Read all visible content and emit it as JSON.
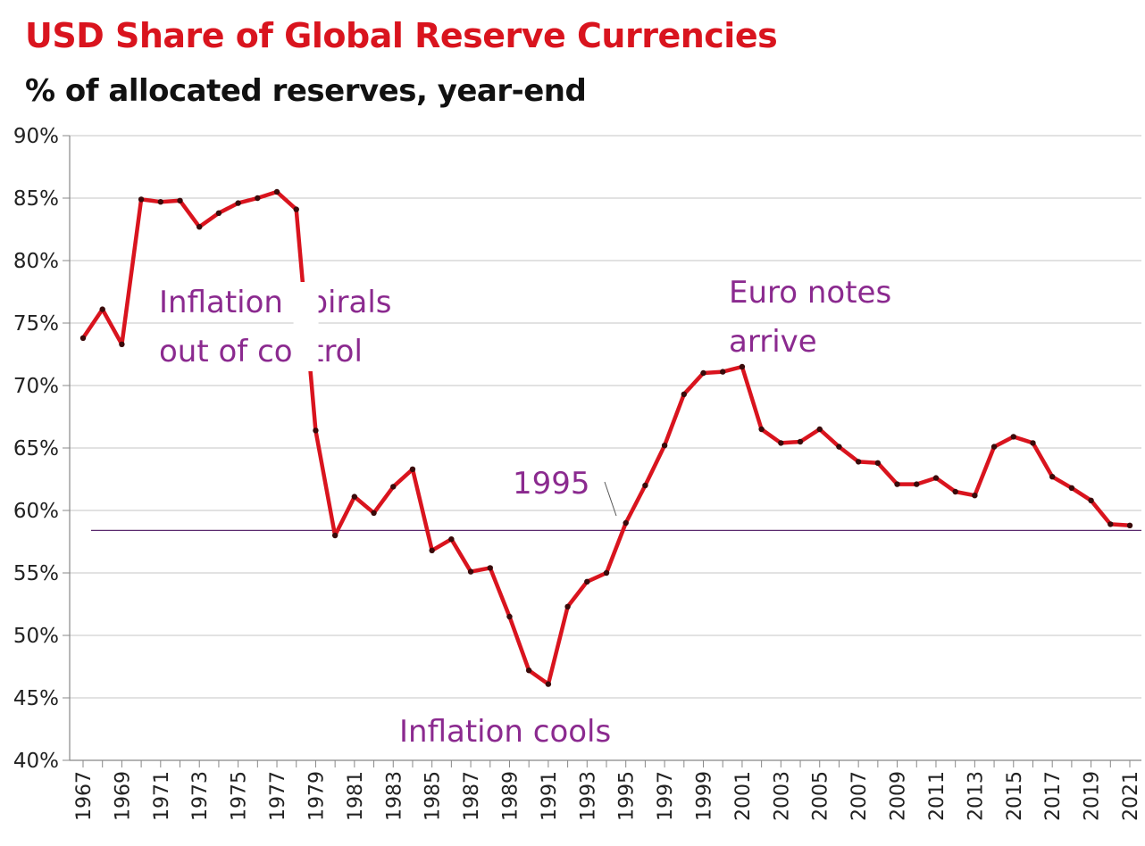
{
  "chart_data": {
    "type": "line",
    "title": "USD Share of Global  Reserve Currencies",
    "subtitle": "% of allocated reserves, year-end",
    "xlabel": "",
    "ylabel": "",
    "ylim": [
      40,
      90
    ],
    "xlim": [
      1967,
      2021
    ],
    "grid": true,
    "y_ticks": [
      "90%",
      "85%",
      "80%",
      "75%",
      "70%",
      "65%",
      "60%",
      "55%",
      "50%",
      "45%",
      "40%"
    ],
    "y_tick_values": [
      90,
      85,
      80,
      75,
      70,
      65,
      60,
      55,
      50,
      45,
      40
    ],
    "x_ticks": [
      "1967",
      "1969",
      "1971",
      "1973",
      "1975",
      "1977",
      "1979",
      "1981",
      "1983",
      "1985",
      "1987",
      "1989",
      "1991",
      "1993",
      "1995",
      "1997",
      "1999",
      "2001",
      "2003",
      "2005",
      "2007",
      "2009",
      "2011",
      "2013",
      "2015",
      "2017",
      "2019",
      "2021"
    ],
    "x_tick_values": [
      1967,
      1969,
      1971,
      1973,
      1975,
      1977,
      1979,
      1981,
      1983,
      1985,
      1987,
      1989,
      1991,
      1993,
      1995,
      1997,
      1999,
      2001,
      2003,
      2005,
      2007,
      2009,
      2011,
      2013,
      2015,
      2017,
      2019,
      2021
    ],
    "series": [
      {
        "color": "#d9141e",
        "x": [
          1967,
          1968,
          1969,
          1970,
          1971,
          1972,
          1973,
          1974,
          1975,
          1976,
          1977,
          1978,
          1979,
          1980,
          1981,
          1982,
          1983,
          1984,
          1985,
          1986,
          1987,
          1988,
          1989,
          1990,
          1991,
          1992,
          1993,
          1994,
          1995,
          1996,
          1997,
          1998,
          1999,
          2000,
          2001,
          2002,
          2003,
          2004,
          2005,
          2006,
          2007,
          2008,
          2009,
          2010,
          2011,
          2012,
          2013,
          2014,
          2015,
          2016,
          2017,
          2018,
          2019,
          2020,
          2021
        ],
        "y": [
          73.8,
          76.1,
          73.3,
          84.9,
          84.7,
          84.8,
          82.7,
          83.8,
          84.6,
          85.0,
          85.5,
          84.1,
          66.4,
          58.0,
          61.1,
          59.8,
          61.9,
          63.3,
          56.8,
          57.7,
          55.1,
          55.4,
          51.5,
          47.2,
          46.1,
          52.3,
          54.3,
          55.0,
          59.0,
          62.0,
          65.2,
          69.3,
          71.0,
          71.1,
          71.5,
          66.5,
          65.4,
          65.5,
          66.5,
          65.1,
          63.9,
          63.8,
          62.1,
          62.1,
          62.6,
          61.5,
          61.2,
          65.1,
          65.9,
          65.4,
          62.7,
          61.8,
          60.8,
          58.9,
          58.8
        ]
      }
    ],
    "reference_line": {
      "y": 58.4,
      "color": "#5a2a6e"
    },
    "annotations": [
      {
        "text": "Inflation spirals",
        "color": "#8b2a8f"
      },
      {
        "text": "out of control",
        "color": "#8b2a8f"
      },
      {
        "text": "Euro notes",
        "color": "#8b2a8f"
      },
      {
        "text": "arrive",
        "color": "#8b2a8f"
      },
      {
        "text": "1995",
        "color": "#8b2a8f"
      },
      {
        "text": "Inflation cools",
        "color": "#8b2a8f"
      }
    ]
  }
}
